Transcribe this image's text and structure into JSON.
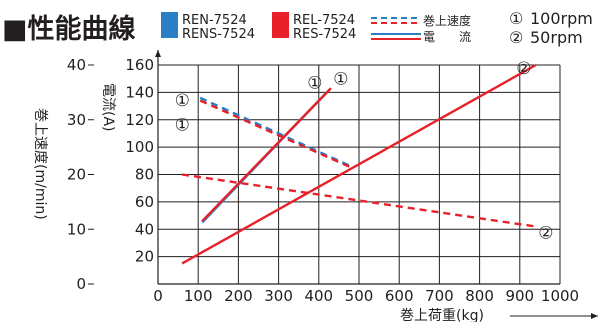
{
  "chart_data": {
    "type": "line",
    "title": "■性能曲線",
    "legend": {
      "models": [
        {
          "names": [
            "REN-7524",
            "RENS-7524"
          ],
          "color": "#2a7fc6"
        },
        {
          "names": [
            "REL-7524",
            "RES-7524"
          ],
          "color": "#e8202a"
        }
      ],
      "line_styles": [
        {
          "style": "dashed",
          "label": "巻上速度"
        },
        {
          "style": "solid",
          "label": "電　　流"
        }
      ],
      "speed_labels": [
        {
          "mark": "①",
          "text": "100rpm"
        },
        {
          "mark": "②",
          "text": "50rpm"
        }
      ]
    },
    "xlabel": "巻上荷重(kg)",
    "xlim": [
      0,
      1000
    ],
    "x_ticks": [
      0,
      100,
      200,
      300,
      400,
      500,
      600,
      700,
      800,
      900,
      1000
    ],
    "y_left": {
      "label": "巻上速度(m/min)",
      "ylim": [
        0,
        40
      ],
      "ticks": [
        0,
        10,
        20,
        30,
        40
      ]
    },
    "y_right": {
      "label": "電流(A)",
      "ylim": [
        0,
        160
      ],
      "ticks": [
        20,
        40,
        60,
        80,
        100,
        120,
        140,
        160
      ]
    },
    "series": [
      {
        "model": "REN-7524/RENS-7524",
        "kind": "current",
        "axis": "right",
        "mark": "①",
        "style": "solid",
        "color": "#2a7fc6",
        "x": [
          110,
          420
        ],
        "y": [
          45,
          140
        ]
      },
      {
        "model": "REL-7524/RES-7524",
        "kind": "current",
        "axis": "right",
        "mark": "①",
        "style": "solid",
        "color": "#e8202a",
        "x": [
          110,
          430
        ],
        "y": [
          46,
          143
        ]
      },
      {
        "model": "REN-7524/RENS-7524",
        "kind": "speed",
        "axis": "left",
        "mark": "①",
        "style": "dashed",
        "color": "#2a7fc6",
        "x": [
          105,
          480
        ],
        "y": [
          34,
          21.5
        ]
      },
      {
        "model": "REL-7524/RES-7524",
        "kind": "speed",
        "axis": "left",
        "mark": "①",
        "style": "dashed",
        "color": "#e8202a",
        "x": [
          105,
          480
        ],
        "y": [
          33.5,
          21.3
        ]
      },
      {
        "model": "REL-7524/RES-7524",
        "kind": "current",
        "axis": "right",
        "mark": "②",
        "style": "solid",
        "color": "#e8202a",
        "x": [
          60,
          940
        ],
        "y": [
          15,
          160
        ]
      },
      {
        "model": "REL-7524/RES-7524",
        "kind": "speed",
        "axis": "left",
        "mark": "②",
        "style": "dashed",
        "color": "#e8202a",
        "x": [
          60,
          940
        ],
        "y": [
          20,
          10.5
        ]
      }
    ],
    "annotations": [
      {
        "text": "①",
        "series": 0
      },
      {
        "text": "①",
        "series": 1
      },
      {
        "text": "①",
        "series": 2
      },
      {
        "text": "①",
        "series": 3
      },
      {
        "text": "②",
        "series": 4
      },
      {
        "text": "②",
        "series": 5
      }
    ]
  }
}
